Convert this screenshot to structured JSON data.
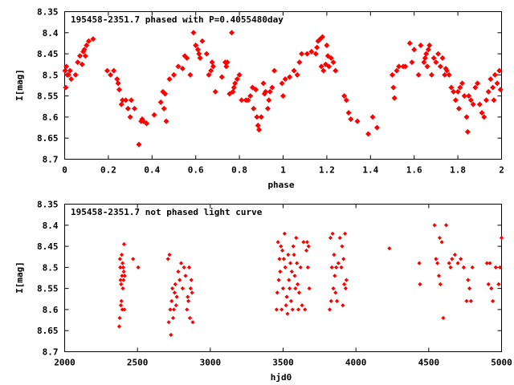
{
  "colors": {
    "marker": "#ff0000",
    "axis": "#000000",
    "background": "#ffffff"
  },
  "chart_data": [
    {
      "type": "scatter",
      "title": "195458-2351.7 phased with P=0.4055480day",
      "xlabel": "phase",
      "ylabel": "I[mag]",
      "xlim": [
        0,
        2
      ],
      "ylim": [
        8.35,
        8.7
      ],
      "y_inverted": true,
      "grid": false,
      "x_ticks": [
        "0",
        "0.2",
        "0.4",
        "0.6",
        "0.8",
        "1",
        "1.2",
        "1.4",
        "1.6",
        "1.8",
        "2"
      ],
      "y_ticks": [
        "8.35",
        "8.4",
        "8.45",
        "8.5",
        "8.55",
        "8.6",
        "8.65",
        "8.7"
      ],
      "points": [
        [
          0.002,
          8.49
        ],
        [
          0.005,
          8.53
        ],
        [
          0.008,
          8.48
        ],
        [
          0.012,
          8.5
        ],
        [
          0.018,
          8.5
        ],
        [
          0.025,
          8.49
        ],
        [
          0.03,
          8.51
        ],
        [
          0.05,
          8.5
        ],
        [
          0.06,
          8.47
        ],
        [
          0.07,
          8.455
        ],
        [
          0.08,
          8.475
        ],
        [
          0.085,
          8.445
        ],
        [
          0.09,
          8.44
        ],
        [
          0.095,
          8.455
        ],
        [
          0.1,
          8.43
        ],
        [
          0.11,
          8.42
        ],
        [
          0.13,
          8.415
        ],
        [
          0.195,
          8.49
        ],
        [
          0.21,
          8.5
        ],
        [
          0.225,
          8.49
        ],
        [
          0.24,
          8.51
        ],
        [
          0.245,
          8.52
        ],
        [
          0.25,
          8.535
        ],
        [
          0.26,
          8.57
        ],
        [
          0.265,
          8.56
        ],
        [
          0.28,
          8.56
        ],
        [
          0.29,
          8.58
        ],
        [
          0.3,
          8.6
        ],
        [
          0.305,
          8.56
        ],
        [
          0.32,
          8.58
        ],
        [
          0.34,
          8.665
        ],
        [
          0.35,
          8.61
        ],
        [
          0.355,
          8.605
        ],
        [
          0.36,
          8.61
        ],
        [
          0.375,
          8.615
        ],
        [
          0.41,
          8.595
        ],
        [
          0.44,
          8.565
        ],
        [
          0.45,
          8.54
        ],
        [
          0.455,
          8.58
        ],
        [
          0.46,
          8.545
        ],
        [
          0.465,
          8.61
        ],
        [
          0.48,
          8.51
        ],
        [
          0.5,
          8.5
        ],
        [
          0.52,
          8.48
        ],
        [
          0.54,
          8.485
        ],
        [
          0.55,
          8.455
        ],
        [
          0.56,
          8.46
        ],
        [
          0.575,
          8.5
        ],
        [
          0.59,
          8.4
        ],
        [
          0.6,
          8.43
        ],
        [
          0.61,
          8.44
        ],
        [
          0.615,
          8.45
        ],
        [
          0.62,
          8.46
        ],
        [
          0.63,
          8.42
        ],
        [
          0.65,
          8.45
        ],
        [
          0.66,
          8.5
        ],
        [
          0.67,
          8.49
        ],
        [
          0.675,
          8.47
        ],
        [
          0.68,
          8.48
        ],
        [
          0.69,
          8.54
        ],
        [
          0.72,
          8.505
        ],
        [
          0.735,
          8.47
        ],
        [
          0.74,
          8.48
        ],
        [
          0.745,
          8.47
        ],
        [
          0.755,
          8.545
        ],
        [
          0.765,
          8.4
        ],
        [
          0.77,
          8.54
        ],
        [
          0.775,
          8.53
        ],
        [
          0.78,
          8.52
        ],
        [
          0.79,
          8.51
        ],
        [
          0.8,
          8.5
        ],
        [
          0.81,
          8.56
        ],
        [
          0.83,
          8.56
        ],
        [
          0.84,
          8.56
        ],
        [
          0.85,
          8.55
        ],
        [
          0.86,
          8.53
        ],
        [
          0.865,
          8.58
        ],
        [
          0.875,
          8.535
        ],
        [
          0.88,
          8.6
        ],
        [
          0.885,
          8.62
        ],
        [
          0.89,
          8.63
        ],
        [
          0.9,
          8.6
        ],
        [
          0.91,
          8.52
        ],
        [
          0.915,
          8.545
        ],
        [
          0.92,
          8.54
        ],
        [
          0.93,
          8.58
        ],
        [
          0.935,
          8.56
        ],
        [
          0.94,
          8.54
        ],
        [
          0.95,
          8.53
        ],
        [
          0.96,
          8.49
        ],
        [
          0.995,
          8.52
        ],
        [
          1.0,
          8.55
        ],
        [
          1.01,
          8.51
        ],
        [
          1.03,
          8.505
        ],
        [
          1.05,
          8.49
        ],
        [
          1.065,
          8.5
        ],
        [
          1.075,
          8.47
        ],
        [
          1.085,
          8.45
        ],
        [
          1.11,
          8.45
        ],
        [
          1.13,
          8.445
        ],
        [
          1.15,
          8.45
        ],
        [
          1.155,
          8.435
        ],
        [
          1.16,
          8.42
        ],
        [
          1.17,
          8.415
        ],
        [
          1.175,
          8.48
        ],
        [
          1.18,
          8.41
        ],
        [
          1.185,
          8.49
        ],
        [
          1.195,
          8.475
        ],
        [
          1.2,
          8.43
        ],
        [
          1.205,
          8.455
        ],
        [
          1.21,
          8.48
        ],
        [
          1.22,
          8.46
        ],
        [
          1.23,
          8.47
        ],
        [
          1.24,
          8.49
        ],
        [
          1.28,
          8.55
        ],
        [
          1.29,
          8.56
        ],
        [
          1.3,
          8.59
        ],
        [
          1.31,
          8.605
        ],
        [
          1.34,
          8.61
        ],
        [
          1.39,
          8.64
        ],
        [
          1.41,
          8.6
        ],
        [
          1.43,
          8.625
        ],
        [
          1.5,
          8.5
        ],
        [
          1.505,
          8.53
        ],
        [
          1.51,
          8.555
        ],
        [
          1.52,
          8.49
        ],
        [
          1.53,
          8.48
        ],
        [
          1.55,
          8.48
        ],
        [
          1.56,
          8.48
        ],
        [
          1.58,
          8.425
        ],
        [
          1.59,
          8.47
        ],
        [
          1.6,
          8.44
        ],
        [
          1.62,
          8.5
        ],
        [
          1.63,
          8.43
        ],
        [
          1.645,
          8.47
        ],
        [
          1.65,
          8.46
        ],
        [
          1.655,
          8.45
        ],
        [
          1.66,
          8.48
        ],
        [
          1.665,
          8.44
        ],
        [
          1.67,
          8.43
        ],
        [
          1.68,
          8.5
        ],
        [
          1.69,
          8.46
        ],
        [
          1.7,
          8.47
        ],
        [
          1.71,
          8.45
        ],
        [
          1.72,
          8.48
        ],
        [
          1.73,
          8.46
        ],
        [
          1.74,
          8.5
        ],
        [
          1.745,
          8.485
        ],
        [
          1.75,
          8.49
        ],
        [
          1.76,
          8.5
        ],
        [
          1.77,
          8.53
        ],
        [
          1.78,
          8.54
        ],
        [
          1.79,
          8.56
        ],
        [
          1.8,
          8.54
        ],
        [
          1.805,
          8.58
        ],
        [
          1.81,
          8.53
        ],
        [
          1.82,
          8.52
        ],
        [
          1.83,
          8.55
        ],
        [
          1.84,
          8.6
        ],
        [
          1.845,
          8.635
        ],
        [
          1.85,
          8.55
        ],
        [
          1.86,
          8.56
        ],
        [
          1.87,
          8.57
        ],
        [
          1.88,
          8.53
        ],
        [
          1.89,
          8.52
        ],
        [
          1.9,
          8.57
        ],
        [
          1.91,
          8.59
        ],
        [
          1.92,
          8.6
        ],
        [
          1.93,
          8.56
        ],
        [
          1.94,
          8.54
        ],
        [
          1.95,
          8.51
        ],
        [
          1.96,
          8.53
        ],
        [
          1.965,
          8.56
        ],
        [
          1.97,
          8.5
        ],
        [
          1.98,
          8.52
        ],
        [
          1.99,
          8.49
        ],
        [
          1.995,
          8.535
        ]
      ]
    },
    {
      "type": "scatter",
      "title": "195458-2351.7 not phased light curve",
      "xlabel": "hjd0",
      "ylabel": "I[mag]",
      "xlim": [
        2000,
        5000
      ],
      "ylim": [
        8.35,
        8.7
      ],
      "y_inverted": true,
      "grid": false,
      "x_ticks": [
        "2000",
        "2500",
        "3000",
        "3500",
        "4000",
        "4500",
        "5000"
      ],
      "y_ticks": [
        "8.35",
        "8.4",
        "8.45",
        "8.5",
        "8.55",
        "8.6",
        "8.65",
        "8.7"
      ],
      "points": [
        [
          2375,
          8.64
        ],
        [
          2378,
          8.62
        ],
        [
          2380,
          8.48
        ],
        [
          2382,
          8.5
        ],
        [
          2384,
          8.53
        ],
        [
          2386,
          8.59
        ],
        [
          2388,
          8.54
        ],
        [
          2390,
          8.58
        ],
        [
          2392,
          8.47
        ],
        [
          2394,
          8.52
        ],
        [
          2396,
          8.6
        ],
        [
          2398,
          8.49
        ],
        [
          2400,
          8.55
        ],
        [
          2402,
          8.5
        ],
        [
          2404,
          8.53
        ],
        [
          2406,
          8.51
        ],
        [
          2408,
          8.445
        ],
        [
          2410,
          8.6
        ],
        [
          2412,
          8.52
        ],
        [
          2470,
          8.48
        ],
        [
          2505,
          8.5
        ],
        [
          2710,
          8.48
        ],
        [
          2715,
          8.63
        ],
        [
          2720,
          8.47
        ],
        [
          2725,
          8.6
        ],
        [
          2730,
          8.66
        ],
        [
          2735,
          8.58
        ],
        [
          2740,
          8.55
        ],
        [
          2745,
          8.62
        ],
        [
          2750,
          8.6
        ],
        [
          2755,
          8.56
        ],
        [
          2760,
          8.54
        ],
        [
          2765,
          8.59
        ],
        [
          2770,
          8.57
        ],
        [
          2780,
          8.51
        ],
        [
          2790,
          8.53
        ],
        [
          2800,
          8.49
        ],
        [
          2810,
          8.55
        ],
        [
          2820,
          8.5
        ],
        [
          2830,
          8.52
        ],
        [
          2840,
          8.6
        ],
        [
          2845,
          8.57
        ],
        [
          2850,
          8.58
        ],
        [
          2855,
          8.5
        ],
        [
          2860,
          8.62
        ],
        [
          2865,
          8.55
        ],
        [
          2870,
          8.53
        ],
        [
          2875,
          8.56
        ],
        [
          2880,
          8.63
        ],
        [
          3455,
          8.6
        ],
        [
          3460,
          8.56
        ],
        [
          3465,
          8.44
        ],
        [
          3470,
          8.53
        ],
        [
          3475,
          8.48
        ],
        [
          3480,
          8.51
        ],
        [
          3485,
          8.45
        ],
        [
          3490,
          8.6
        ],
        [
          3495,
          8.46
        ],
        [
          3500,
          8.55
        ],
        [
          3505,
          8.48
        ],
        [
          3510,
          8.42
        ],
        [
          3515,
          8.5
        ],
        [
          3520,
          8.59
        ],
        [
          3525,
          8.57
        ],
        [
          3530,
          8.61
        ],
        [
          3535,
          8.47
        ],
        [
          3540,
          8.53
        ],
        [
          3545,
          8.55
        ],
        [
          3550,
          8.49
        ],
        [
          3555,
          8.58
        ],
        [
          3560,
          8.51
        ],
        [
          3565,
          8.6
        ],
        [
          3570,
          8.45
        ],
        [
          3575,
          8.47
        ],
        [
          3580,
          8.52
        ],
        [
          3585,
          8.55
        ],
        [
          3590,
          8.43
        ],
        [
          3595,
          8.49
        ],
        [
          3600,
          8.54
        ],
        [
          3605,
          8.6
        ],
        [
          3610,
          8.56
        ],
        [
          3620,
          8.5
        ],
        [
          3630,
          8.59
        ],
        [
          3640,
          8.44
        ],
        [
          3650,
          8.6
        ],
        [
          3660,
          8.46
        ],
        [
          3665,
          8.44
        ],
        [
          3670,
          8.5
        ],
        [
          3675,
          8.45
        ],
        [
          3680,
          8.55
        ],
        [
          3820,
          8.6
        ],
        [
          3825,
          8.43
        ],
        [
          3830,
          8.58
        ],
        [
          3835,
          8.5
        ],
        [
          3840,
          8.42
        ],
        [
          3845,
          8.55
        ],
        [
          3850,
          8.47
        ],
        [
          3855,
          8.52
        ],
        [
          3860,
          8.56
        ],
        [
          3865,
          8.5
        ],
        [
          3870,
          8.58
        ],
        [
          3880,
          8.49
        ],
        [
          3890,
          8.43
        ],
        [
          3900,
          8.5
        ],
        [
          3905,
          8.45
        ],
        [
          3910,
          8.59
        ],
        [
          3915,
          8.48
        ],
        [
          3920,
          8.54
        ],
        [
          3925,
          8.42
        ],
        [
          3930,
          8.55
        ],
        [
          3935,
          8.53
        ],
        [
          4230,
          8.455
        ],
        [
          4435,
          8.49
        ],
        [
          4440,
          8.54
        ],
        [
          4540,
          8.4
        ],
        [
          4550,
          8.48
        ],
        [
          4560,
          8.49
        ],
        [
          4570,
          8.52
        ],
        [
          4575,
          8.43
        ],
        [
          4580,
          8.54
        ],
        [
          4590,
          8.44
        ],
        [
          4600,
          8.62
        ],
        [
          4620,
          8.4
        ],
        [
          4640,
          8.49
        ],
        [
          4650,
          8.5
        ],
        [
          4660,
          8.48
        ],
        [
          4680,
          8.47
        ],
        [
          4700,
          8.49
        ],
        [
          4720,
          8.48
        ],
        [
          4740,
          8.5
        ],
        [
          4760,
          8.58
        ],
        [
          4770,
          8.53
        ],
        [
          4780,
          8.55
        ],
        [
          4790,
          8.58
        ],
        [
          4800,
          8.5
        ],
        [
          4900,
          8.49
        ],
        [
          4910,
          8.54
        ],
        [
          4920,
          8.49
        ],
        [
          4930,
          8.55
        ],
        [
          4940,
          8.58
        ],
        [
          4960,
          8.5
        ],
        [
          4980,
          8.54
        ],
        [
          4990,
          8.5
        ],
        [
          5000,
          8.43
        ]
      ]
    }
  ]
}
